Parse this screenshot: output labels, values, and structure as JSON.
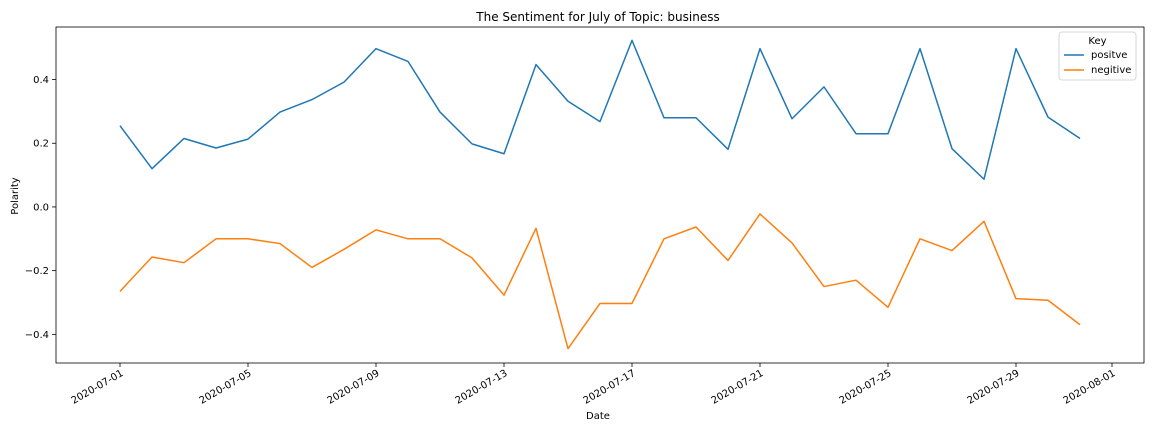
{
  "chart_data": {
    "type": "line",
    "title": "The Sentiment for July of Topic: business",
    "xlabel": "Date",
    "ylabel": "Polarity",
    "x": [
      "2020-07-01",
      "2020-07-02",
      "2020-07-03",
      "2020-07-04",
      "2020-07-05",
      "2020-07-06",
      "2020-07-07",
      "2020-07-08",
      "2020-07-09",
      "2020-07-10",
      "2020-07-11",
      "2020-07-12",
      "2020-07-13",
      "2020-07-14",
      "2020-07-15",
      "2020-07-16",
      "2020-07-17",
      "2020-07-18",
      "2020-07-19",
      "2020-07-20",
      "2020-07-21",
      "2020-07-22",
      "2020-07-23",
      "2020-07-24",
      "2020-07-25",
      "2020-07-26",
      "2020-07-27",
      "2020-07-28",
      "2020-07-29",
      "2020-07-30",
      "2020-07-31"
    ],
    "series": [
      {
        "name": "positve",
        "color": "#1f77b4",
        "values": [
          0.255,
          0.12,
          0.215,
          0.185,
          0.213,
          0.298,
          0.337,
          0.392,
          0.497,
          0.457,
          0.298,
          0.198,
          0.167,
          0.447,
          0.332,
          0.268,
          0.523,
          0.28,
          0.28,
          0.181,
          0.497,
          0.277,
          0.377,
          0.23,
          0.23,
          0.497,
          0.183,
          0.087,
          0.497,
          0.282,
          0.215
        ]
      },
      {
        "name": "negitive",
        "color": "#ff7f0e",
        "values": [
          -0.265,
          -0.157,
          -0.175,
          -0.1,
          -0.1,
          -0.115,
          -0.19,
          -0.133,
          -0.072,
          -0.1,
          -0.1,
          -0.16,
          -0.277,
          -0.067,
          -0.445,
          -0.303,
          -0.303,
          -0.1,
          -0.063,
          -0.168,
          -0.022,
          -0.113,
          -0.25,
          -0.23,
          -0.315,
          -0.1,
          -0.137,
          -0.045,
          -0.288,
          -0.293,
          -0.37
        ]
      }
    ],
    "x_ticks": [
      "2020-07-01",
      "2020-07-05",
      "2020-07-09",
      "2020-07-13",
      "2020-07-17",
      "2020-07-21",
      "2020-07-25",
      "2020-07-29",
      "2020-08-01"
    ],
    "y_ticks": [
      0.4,
      0.2,
      0.0,
      -0.2,
      -0.4
    ],
    "y_tick_labels": [
      "0.4",
      "0.2",
      "0.0",
      "−0.2",
      "−0.4"
    ],
    "xlim": [
      "2020-06-29",
      "2020-08-02"
    ],
    "ylim": [
      -0.49,
      0.565
    ],
    "grid": false,
    "legend": {
      "title": "Key",
      "placement": "top-right"
    }
  }
}
